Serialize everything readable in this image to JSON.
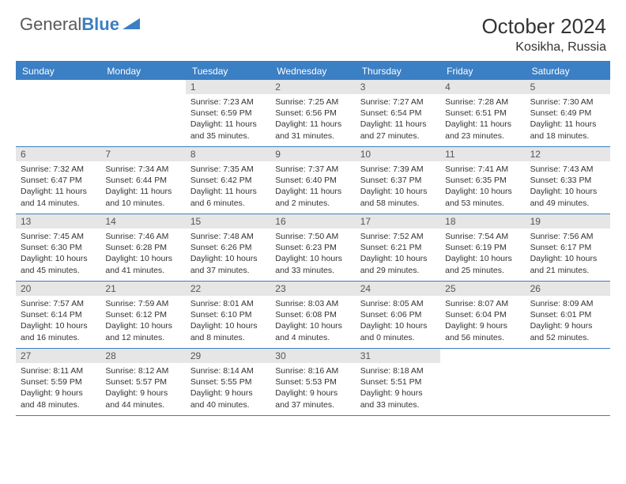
{
  "brand": {
    "part1": "General",
    "part2": "Blue"
  },
  "title": "October 2024",
  "location": "Kosikha, Russia",
  "colors": {
    "accent": "#3b7fc4",
    "dayNumBg": "#e6e6e6",
    "text": "#333333",
    "logoGray": "#5a5a5a"
  },
  "dayHeaders": [
    "Sunday",
    "Monday",
    "Tuesday",
    "Wednesday",
    "Thursday",
    "Friday",
    "Saturday"
  ],
  "weeks": [
    [
      null,
      null,
      {
        "n": "1",
        "sr": "7:23 AM",
        "ss": "6:59 PM",
        "dl": "11 hours and 35 minutes."
      },
      {
        "n": "2",
        "sr": "7:25 AM",
        "ss": "6:56 PM",
        "dl": "11 hours and 31 minutes."
      },
      {
        "n": "3",
        "sr": "7:27 AM",
        "ss": "6:54 PM",
        "dl": "11 hours and 27 minutes."
      },
      {
        "n": "4",
        "sr": "7:28 AM",
        "ss": "6:51 PM",
        "dl": "11 hours and 23 minutes."
      },
      {
        "n": "5",
        "sr": "7:30 AM",
        "ss": "6:49 PM",
        "dl": "11 hours and 18 minutes."
      }
    ],
    [
      {
        "n": "6",
        "sr": "7:32 AM",
        "ss": "6:47 PM",
        "dl": "11 hours and 14 minutes."
      },
      {
        "n": "7",
        "sr": "7:34 AM",
        "ss": "6:44 PM",
        "dl": "11 hours and 10 minutes."
      },
      {
        "n": "8",
        "sr": "7:35 AM",
        "ss": "6:42 PM",
        "dl": "11 hours and 6 minutes."
      },
      {
        "n": "9",
        "sr": "7:37 AM",
        "ss": "6:40 PM",
        "dl": "11 hours and 2 minutes."
      },
      {
        "n": "10",
        "sr": "7:39 AM",
        "ss": "6:37 PM",
        "dl": "10 hours and 58 minutes."
      },
      {
        "n": "11",
        "sr": "7:41 AM",
        "ss": "6:35 PM",
        "dl": "10 hours and 53 minutes."
      },
      {
        "n": "12",
        "sr": "7:43 AM",
        "ss": "6:33 PM",
        "dl": "10 hours and 49 minutes."
      }
    ],
    [
      {
        "n": "13",
        "sr": "7:45 AM",
        "ss": "6:30 PM",
        "dl": "10 hours and 45 minutes."
      },
      {
        "n": "14",
        "sr": "7:46 AM",
        "ss": "6:28 PM",
        "dl": "10 hours and 41 minutes."
      },
      {
        "n": "15",
        "sr": "7:48 AM",
        "ss": "6:26 PM",
        "dl": "10 hours and 37 minutes."
      },
      {
        "n": "16",
        "sr": "7:50 AM",
        "ss": "6:23 PM",
        "dl": "10 hours and 33 minutes."
      },
      {
        "n": "17",
        "sr": "7:52 AM",
        "ss": "6:21 PM",
        "dl": "10 hours and 29 minutes."
      },
      {
        "n": "18",
        "sr": "7:54 AM",
        "ss": "6:19 PM",
        "dl": "10 hours and 25 minutes."
      },
      {
        "n": "19",
        "sr": "7:56 AM",
        "ss": "6:17 PM",
        "dl": "10 hours and 21 minutes."
      }
    ],
    [
      {
        "n": "20",
        "sr": "7:57 AM",
        "ss": "6:14 PM",
        "dl": "10 hours and 16 minutes."
      },
      {
        "n": "21",
        "sr": "7:59 AM",
        "ss": "6:12 PM",
        "dl": "10 hours and 12 minutes."
      },
      {
        "n": "22",
        "sr": "8:01 AM",
        "ss": "6:10 PM",
        "dl": "10 hours and 8 minutes."
      },
      {
        "n": "23",
        "sr": "8:03 AM",
        "ss": "6:08 PM",
        "dl": "10 hours and 4 minutes."
      },
      {
        "n": "24",
        "sr": "8:05 AM",
        "ss": "6:06 PM",
        "dl": "10 hours and 0 minutes."
      },
      {
        "n": "25",
        "sr": "8:07 AM",
        "ss": "6:04 PM",
        "dl": "9 hours and 56 minutes."
      },
      {
        "n": "26",
        "sr": "8:09 AM",
        "ss": "6:01 PM",
        "dl": "9 hours and 52 minutes."
      }
    ],
    [
      {
        "n": "27",
        "sr": "8:11 AM",
        "ss": "5:59 PM",
        "dl": "9 hours and 48 minutes."
      },
      {
        "n": "28",
        "sr": "8:12 AM",
        "ss": "5:57 PM",
        "dl": "9 hours and 44 minutes."
      },
      {
        "n": "29",
        "sr": "8:14 AM",
        "ss": "5:55 PM",
        "dl": "9 hours and 40 minutes."
      },
      {
        "n": "30",
        "sr": "8:16 AM",
        "ss": "5:53 PM",
        "dl": "9 hours and 37 minutes."
      },
      {
        "n": "31",
        "sr": "8:18 AM",
        "ss": "5:51 PM",
        "dl": "9 hours and 33 minutes."
      },
      null,
      null
    ]
  ],
  "labels": {
    "sunrise": "Sunrise:",
    "sunset": "Sunset:",
    "daylight": "Daylight:"
  }
}
